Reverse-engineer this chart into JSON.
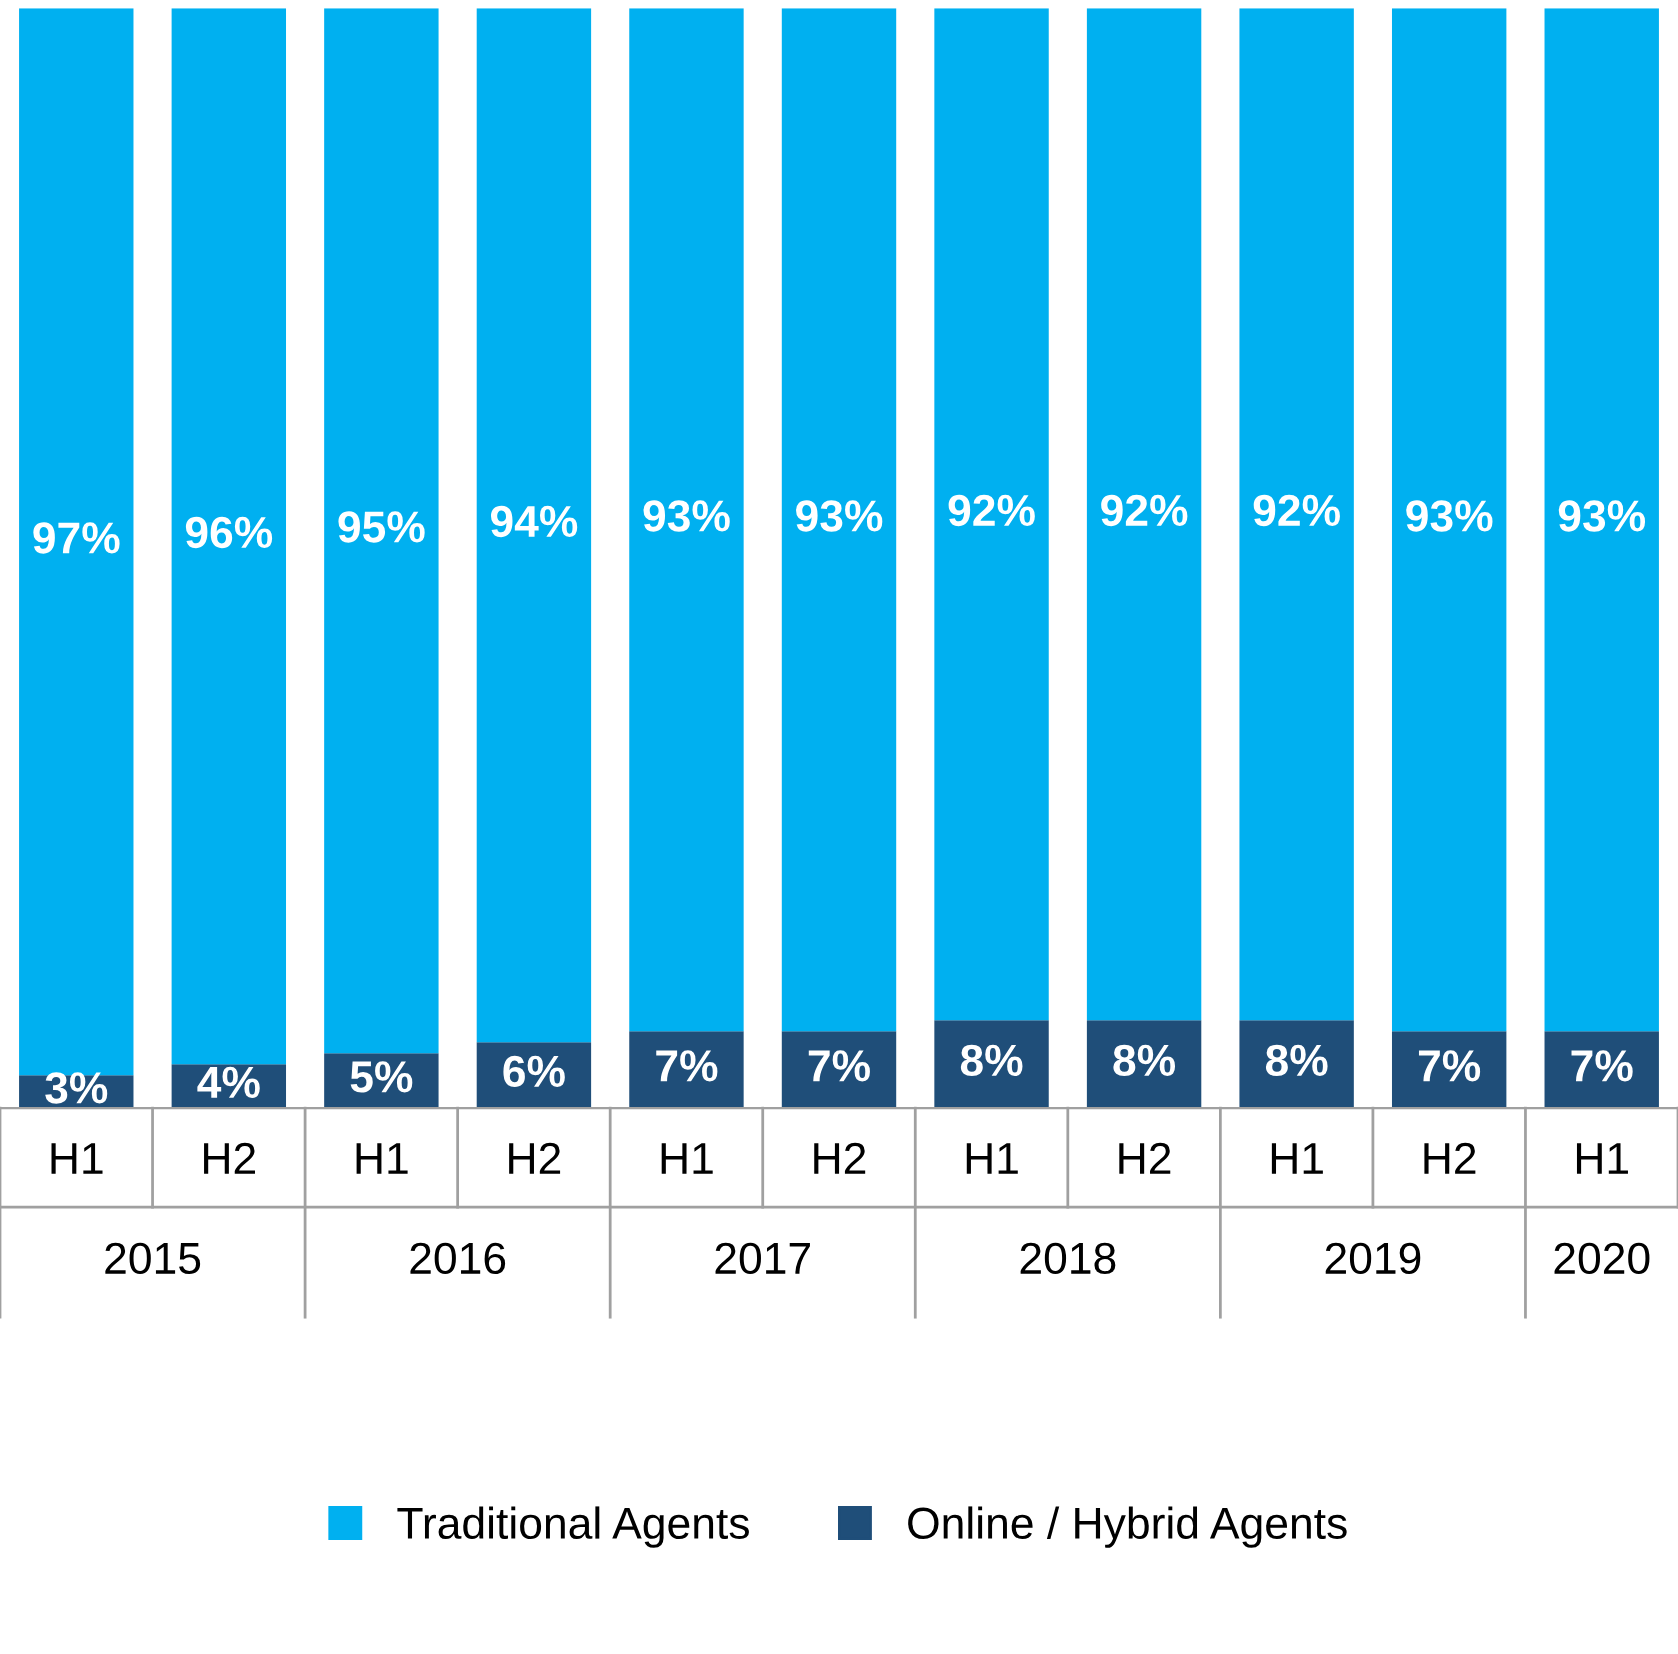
{
  "chart_data": {
    "type": "bar",
    "stacked": true,
    "tick_labels": "x",
    "grid": false,
    "legend": "bottom",
    "categories": [
      "H1",
      "H2",
      "H1",
      "H2",
      "H1",
      "H2",
      "H1",
      "H2",
      "H1",
      "H2",
      "H1"
    ],
    "series": [
      {
        "name": "Online / Hybrid Agents",
        "color": "#1f4e79",
        "values": [
          3,
          4,
          5,
          6,
          7,
          7,
          8,
          8,
          8,
          7,
          7
        ],
        "value_labels": [
          "3%",
          "4%",
          "5%",
          "6%",
          "7%",
          "7%",
          "8%",
          "8%",
          "8%",
          "7%",
          "7%"
        ]
      },
      {
        "name": "Traditional Agents",
        "color": "#00b0f0",
        "values": [
          97,
          96,
          95,
          94,
          93,
          93,
          92,
          92,
          92,
          93,
          93
        ],
        "value_labels": [
          "97%",
          "96%",
          "95%",
          "94%",
          "93%",
          "93%",
          "92%",
          "92%",
          "92%",
          "93%",
          "93%"
        ]
      }
    ],
    "annotations": [
      "2015",
      "2016",
      "2017",
      "2018",
      "2019",
      "2020"
    ]
  }
}
